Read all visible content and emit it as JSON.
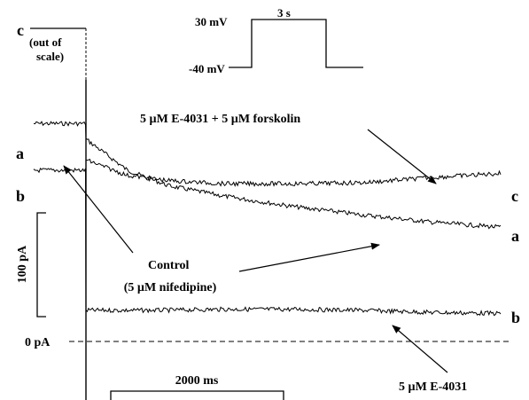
{
  "chart_data": {
    "type": "line",
    "x_unit": "ms",
    "y_unit": "pA",
    "protocol": {
      "holding_label": "-40 mV",
      "step_label": "30 mV",
      "duration_label": "3 s"
    },
    "scale_bars": {
      "time_label": "2000 ms",
      "time_value": 2000,
      "current_label": "100 pA",
      "current_value": 100
    },
    "zero_label": "0 pA",
    "out_of_scale_label": "c",
    "out_of_scale_note": "(out of scale)",
    "series": [
      {
        "id": "a",
        "name": "Control (5 µM nifedipine)",
        "end_label": "a",
        "pre_step_value": 210,
        "points": [
          [
            0,
            195
          ],
          [
            300,
            165
          ],
          [
            600,
            150
          ],
          [
            1000,
            140
          ],
          [
            1500,
            130
          ],
          [
            2000,
            122
          ],
          [
            2500,
            115
          ],
          [
            3000,
            110
          ]
        ]
      },
      {
        "id": "b",
        "name": "5 µM E-4031",
        "end_label": "b",
        "pre_step_value": 165,
        "points": [
          [
            0,
            30
          ],
          [
            500,
            30
          ],
          [
            1000,
            31
          ],
          [
            1500,
            31
          ],
          [
            2000,
            30
          ],
          [
            2500,
            28
          ],
          [
            3000,
            27
          ]
        ]
      },
      {
        "id": "c",
        "name": "5 µM E-4031 + 5 µM forskolin",
        "end_label": "c",
        "pre_step_value": 210,
        "points": [
          [
            0,
            175
          ],
          [
            300,
            160
          ],
          [
            600,
            155
          ],
          [
            1000,
            152
          ],
          [
            1500,
            152
          ],
          [
            2000,
            153
          ],
          [
            2500,
            158
          ],
          [
            3000,
            162
          ]
        ]
      }
    ],
    "annotations": {
      "control": [
        "Control",
        "(5 µM nifedipine)"
      ],
      "e4031": "5 µM E-4031",
      "e4031_forskolin": "5 µM E-4031 + 5 µM forskolin"
    },
    "pre_labels": {
      "a": "a",
      "b": "b"
    }
  }
}
